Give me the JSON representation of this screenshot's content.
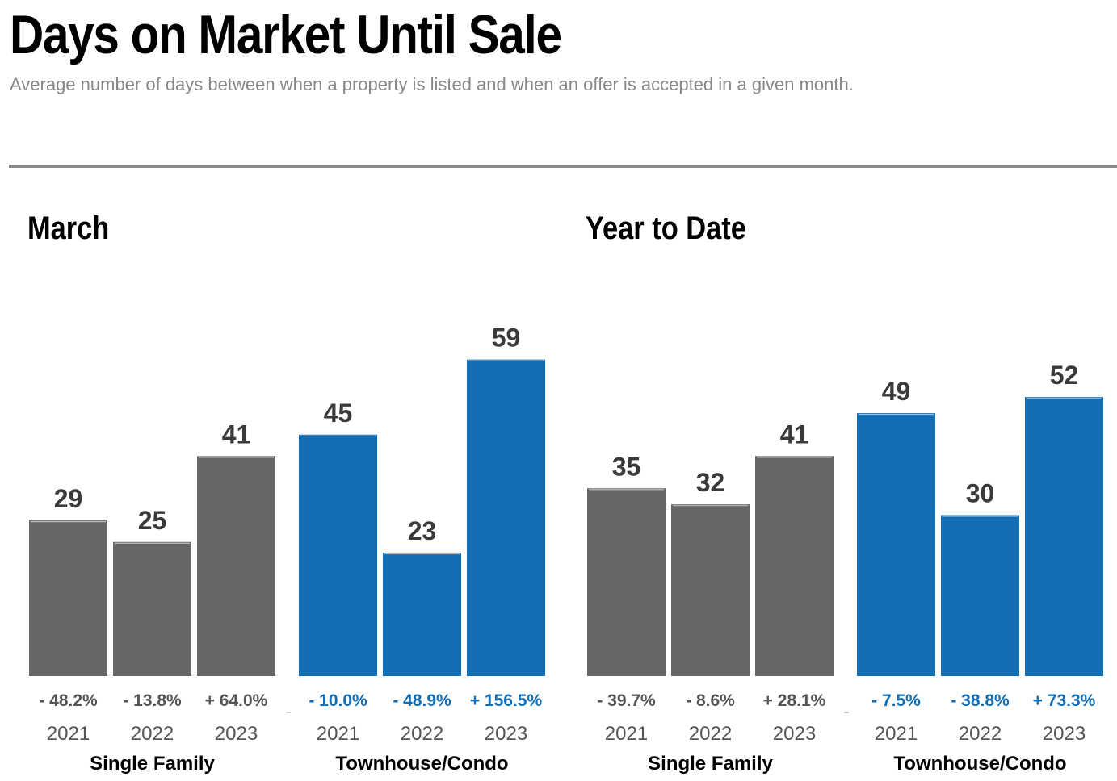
{
  "title": "Days on Market Until Sale",
  "subtitle": "Average number of days between when a property is listed and when an offer is accepted in a given month.",
  "colors": {
    "single_family": "#666666",
    "townhouse": "#116db4",
    "change_single": "#555555",
    "change_townhouse": "#116db4",
    "text": "#3a3a3a"
  },
  "chart_data": [
    {
      "type": "bar",
      "title": "March",
      "ylim": [
        0,
        70
      ],
      "groups": [
        {
          "name": "Single Family",
          "categories": [
            "2021",
            "2022",
            "2023"
          ],
          "values": [
            29,
            25,
            41
          ],
          "changes": [
            "- 48.2%",
            "- 13.8%",
            "+ 64.0%"
          ]
        },
        {
          "name": "Townhouse/Condo",
          "categories": [
            "2021",
            "2022",
            "2023"
          ],
          "values": [
            45,
            23,
            59
          ],
          "changes": [
            "- 10.0%",
            "- 48.9%",
            "+ 156.5%"
          ]
        }
      ]
    },
    {
      "type": "bar",
      "title": "Year to Date",
      "ylim": [
        0,
        70
      ],
      "groups": [
        {
          "name": "Single Family",
          "categories": [
            "2021",
            "2022",
            "2023"
          ],
          "values": [
            35,
            32,
            41
          ],
          "changes": [
            "- 39.7%",
            "- 8.6%",
            "+ 28.1%"
          ]
        },
        {
          "name": "Townhouse/Condo",
          "categories": [
            "2021",
            "2022",
            "2023"
          ],
          "values": [
            49,
            30,
            52
          ],
          "changes": [
            "- 7.5%",
            "- 38.8%",
            "+ 73.3%"
          ]
        }
      ]
    }
  ]
}
